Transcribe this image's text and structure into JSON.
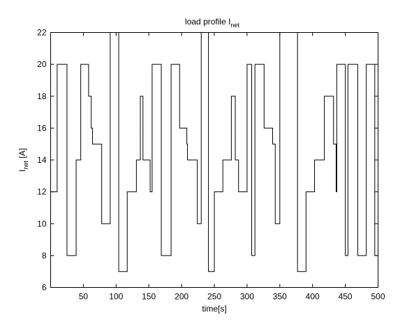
{
  "chart_data": {
    "type": "line",
    "title": {
      "main": "load profile I",
      "sub": "net"
    },
    "xlabel": "time[s]",
    "ylabel": {
      "main": "I",
      "sub": "net",
      "unit": " [A]"
    },
    "xlim": [
      0,
      500
    ],
    "ylim": [
      6,
      22
    ],
    "xticks": [
      50,
      100,
      150,
      200,
      250,
      300,
      350,
      400,
      450,
      500
    ],
    "yticks": [
      6,
      8,
      10,
      12,
      14,
      16,
      18,
      20,
      22
    ],
    "grid": false,
    "line_color": "#000000",
    "series": [
      {
        "x": [
          0,
          10,
          10,
          25,
          25,
          39,
          39,
          46,
          46,
          58,
          58,
          62,
          62,
          64,
          64,
          78,
          78,
          91,
          91,
          104,
          104,
          104,
          104,
          117,
          117,
          131,
          131,
          137,
          137,
          141,
          141,
          152,
          152,
          155,
          155,
          169,
          169,
          184,
          184,
          197,
          197,
          208,
          208,
          209,
          209,
          224,
          224,
          230,
          230,
          234,
          234,
          241,
          241,
          250,
          250,
          263,
          263,
          276,
          276,
          282,
          282,
          287,
          287,
          300,
          300,
          307,
          307,
          312,
          312,
          326,
          326,
          339,
          339,
          343,
          343,
          350,
          350,
          364,
          364,
          377,
          377,
          390,
          390,
          403,
          403,
          418,
          418,
          432,
          432,
          436,
          436,
          437,
          437,
          450,
          450,
          454,
          454,
          469,
          469,
          482,
          482,
          495,
          495,
          500
        ],
        "y": [
          12,
          12,
          20,
          20,
          8,
          8,
          14,
          14,
          20,
          20,
          18,
          18,
          16,
          16,
          15,
          15,
          10,
          10,
          22,
          22,
          22,
          22,
          7,
          7,
          12,
          12,
          14,
          14,
          18,
          18,
          14,
          14,
          12,
          12,
          20,
          20,
          8,
          8,
          20,
          20,
          16,
          16,
          15,
          15,
          14,
          14,
          10,
          10,
          22,
          22,
          22,
          22,
          7,
          7,
          12,
          12,
          14,
          14,
          18,
          18,
          14,
          14,
          12,
          12,
          20,
          20,
          8,
          8,
          20,
          20,
          16,
          16,
          15,
          15,
          10,
          10,
          22,
          22,
          22,
          22,
          7,
          7,
          12,
          12,
          14,
          14,
          18,
          18,
          15,
          15,
          12,
          12,
          20,
          20,
          8,
          8,
          20,
          20,
          8,
          8,
          20,
          20,
          8,
          8
        ]
      }
    ]
  }
}
